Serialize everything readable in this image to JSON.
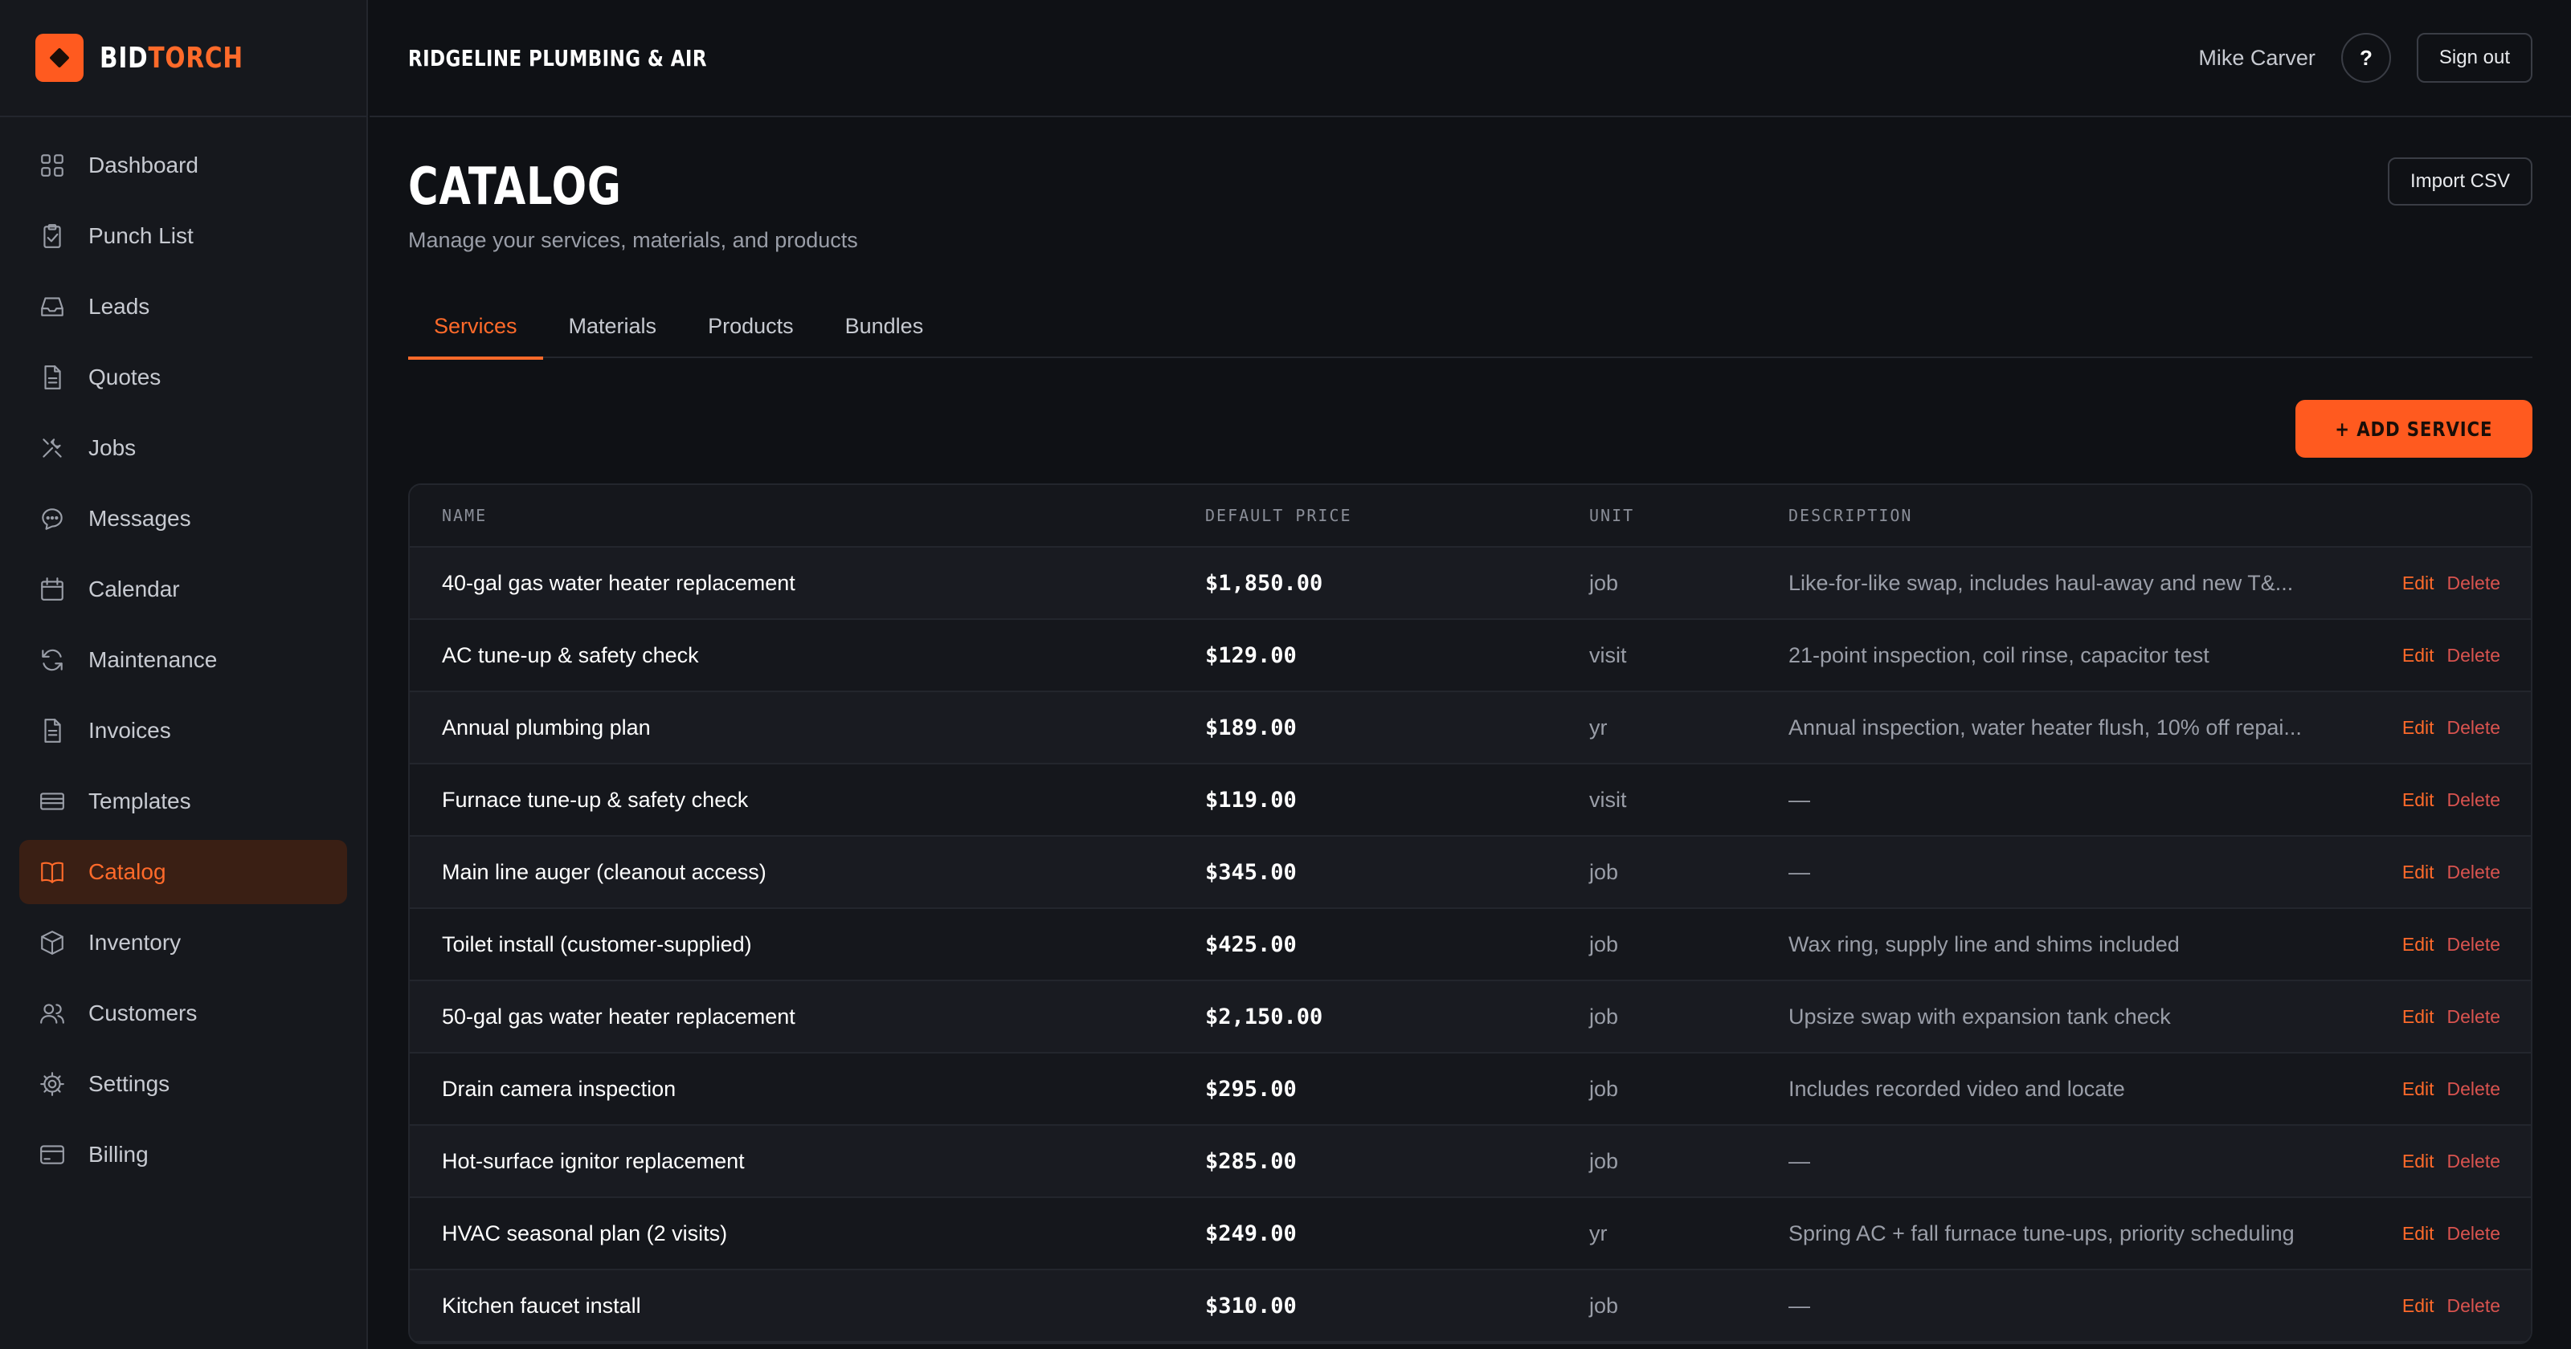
{
  "brand": {
    "name_a": "BID",
    "name_b": "TORCH"
  },
  "sidebar": {
    "items": [
      {
        "label": "Dashboard",
        "icon": "dashboard-icon"
      },
      {
        "label": "Punch List",
        "icon": "clipboard-check-icon"
      },
      {
        "label": "Leads",
        "icon": "inbox-icon"
      },
      {
        "label": "Quotes",
        "icon": "document-icon"
      },
      {
        "label": "Jobs",
        "icon": "tools-icon"
      },
      {
        "label": "Messages",
        "icon": "chat-bubble-icon"
      },
      {
        "label": "Calendar",
        "icon": "calendar-icon"
      },
      {
        "label": "Maintenance",
        "icon": "refresh-icon"
      },
      {
        "label": "Invoices",
        "icon": "receipt-icon"
      },
      {
        "label": "Templates",
        "icon": "template-icon"
      },
      {
        "label": "Catalog",
        "icon": "book-icon",
        "active": true
      },
      {
        "label": "Inventory",
        "icon": "box-icon"
      },
      {
        "label": "Customers",
        "icon": "users-icon"
      },
      {
        "label": "Settings",
        "icon": "gear-icon"
      },
      {
        "label": "Billing",
        "icon": "credit-card-icon"
      }
    ]
  },
  "header": {
    "company": "RIDGELINE PLUMBING & AIR",
    "user": "Mike Carver",
    "help_label": "?",
    "signout_label": "Sign out"
  },
  "page": {
    "title": "CATALOG",
    "subtitle": "Manage your services, materials, and products",
    "import_label": "Import CSV",
    "add_label": "+ ADD SERVICE"
  },
  "tabs": [
    {
      "label": "Services",
      "active": true
    },
    {
      "label": "Materials"
    },
    {
      "label": "Products"
    },
    {
      "label": "Bundles"
    }
  ],
  "table": {
    "headers": {
      "name": "NAME",
      "price": "DEFAULT PRICE",
      "unit": "UNIT",
      "description": "DESCRIPTION"
    },
    "edit_label": "Edit",
    "delete_label": "Delete",
    "rows": [
      {
        "name": "40-gal gas water heater replacement",
        "price": "$1,850.00",
        "unit": "job",
        "description": "Like-for-like swap, includes haul-away and new T&..."
      },
      {
        "name": "AC tune-up & safety check",
        "price": "$129.00",
        "unit": "visit",
        "description": "21-point inspection, coil rinse, capacitor test"
      },
      {
        "name": "Annual plumbing plan",
        "price": "$189.00",
        "unit": "yr",
        "description": "Annual inspection, water heater flush, 10% off repai..."
      },
      {
        "name": "Furnace tune-up & safety check",
        "price": "$119.00",
        "unit": "visit",
        "description": "—"
      },
      {
        "name": "Main line auger (cleanout access)",
        "price": "$345.00",
        "unit": "job",
        "description": "—"
      },
      {
        "name": "Toilet install (customer-supplied)",
        "price": "$425.00",
        "unit": "job",
        "description": "Wax ring, supply line and shims included"
      },
      {
        "name": "50-gal gas water heater replacement",
        "price": "$2,150.00",
        "unit": "job",
        "description": "Upsize swap with expansion tank check"
      },
      {
        "name": "Drain camera inspection",
        "price": "$295.00",
        "unit": "job",
        "description": "Includes recorded video and locate"
      },
      {
        "name": "Hot-surface ignitor replacement",
        "price": "$285.00",
        "unit": "job",
        "description": "—"
      },
      {
        "name": "HVAC seasonal plan (2 visits)",
        "price": "$249.00",
        "unit": "yr",
        "description": "Spring AC + fall furnace tune-ups, priority scheduling"
      },
      {
        "name": "Kitchen faucet install",
        "price": "$310.00",
        "unit": "job",
        "description": "—"
      }
    ]
  },
  "colors": {
    "accent": "#ff5a1f",
    "background": "#0f1115",
    "sidebar": "#16181d",
    "danger": "#d9534f"
  }
}
